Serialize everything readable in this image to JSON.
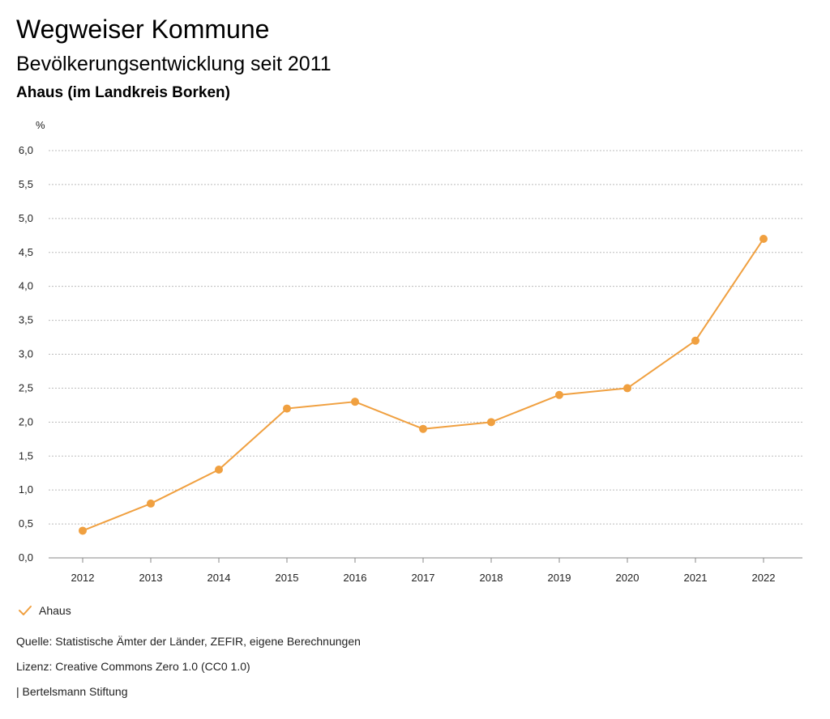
{
  "header": {
    "title": "Wegweiser Kommune",
    "subtitle": "Bevölkerungsentwicklung seit 2011",
    "region": "Ahaus (im Landkreis Borken)"
  },
  "chart_data": {
    "type": "line",
    "ylabel": "%",
    "xlabel": "",
    "categories": [
      "2012",
      "2013",
      "2014",
      "2015",
      "2016",
      "2017",
      "2018",
      "2019",
      "2020",
      "2021",
      "2022"
    ],
    "series": [
      {
        "name": "Ahaus",
        "color": "#F0A040",
        "values": [
          0.4,
          0.8,
          1.3,
          2.2,
          2.3,
          1.9,
          2.0,
          2.4,
          2.5,
          3.2,
          4.7
        ]
      }
    ],
    "ylim": [
      0,
      6.0
    ],
    "yticks": [
      "0,0",
      "0,5",
      "1,0",
      "1,5",
      "2,0",
      "2,5",
      "3,0",
      "3,5",
      "4,0",
      "4,5",
      "5,0",
      "5,5",
      "6,0"
    ],
    "grid": true,
    "legend": "bottom-left"
  },
  "legend": {
    "label": "Ahaus"
  },
  "footer": {
    "source": "Quelle: Statistische Ämter der Länder, ZEFIR, eigene Berechnungen",
    "license": "Lizenz: Creative Commons Zero 1.0 (CC0 1.0)",
    "publisher": "| Bertelsmann Stiftung"
  }
}
